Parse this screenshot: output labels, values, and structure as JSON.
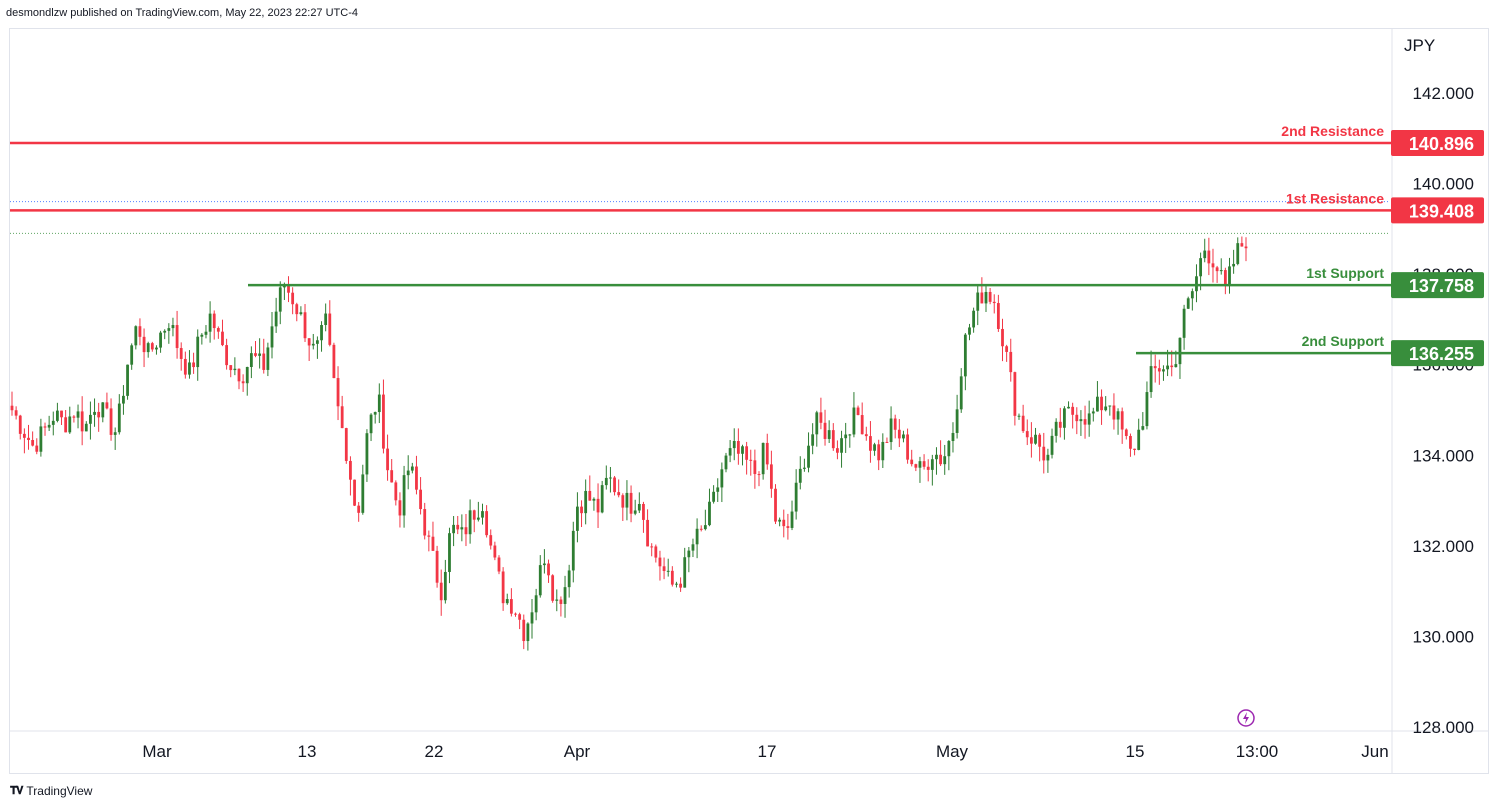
{
  "header": {
    "published_by": "desmondlzw published on TradingView.com, May 22, 2023 22:27 UTC-4"
  },
  "footer": {
    "brand": "TradingView",
    "logo_icon": "tradingview-logo-icon"
  },
  "colors": {
    "resistance": "#f23645",
    "support": "#388e3c",
    "candle_up": "#22ab94",
    "candle_up_dark": "#2e7d32",
    "candle_down": "#f23645",
    "axis_text": "#131722",
    "grid": "#e0e3eb"
  },
  "chart_data": {
    "type": "candlestick",
    "currency": "JPY",
    "y_axis": {
      "range": [
        127.8,
        143.2
      ],
      "ticks": [
        128.0,
        130.0,
        132.0,
        134.0,
        136.0,
        138.0,
        140.0,
        142.0
      ],
      "tick_labels": [
        "128.000",
        "130.000",
        "132.000",
        "134.000",
        "136.000",
        "138.000",
        "140.000",
        "142.000"
      ]
    },
    "x_axis": {
      "tick_labels": [
        "Mar",
        "13",
        "22",
        "Apr",
        "17",
        "May",
        "15",
        "13:00",
        "Jun"
      ]
    },
    "levels": [
      {
        "name": "2nd Resistance",
        "value": 140.896,
        "label": "140.896",
        "kind": "resistance"
      },
      {
        "name": "1st Resistance",
        "value": 139.408,
        "label": "139.408",
        "kind": "resistance"
      },
      {
        "name": "1st Support",
        "value": 137.758,
        "label": "137.758",
        "kind": "support"
      },
      {
        "name": "2nd Support",
        "value": 136.255,
        "label": "136.255",
        "kind": "support"
      }
    ],
    "dotted_lines": [
      139.6,
      138.9
    ],
    "close_path": [
      135.0,
      134.6,
      134.2,
      134.5,
      134.9,
      134.7,
      135.0,
      134.6,
      135.2,
      134.8,
      134.5,
      136.0,
      136.9,
      136.2,
      136.6,
      137.0,
      136.3,
      135.8,
      136.6,
      137.1,
      136.4,
      136.0,
      135.8,
      136.2,
      135.9,
      137.0,
      137.8,
      137.4,
      136.8,
      136.2,
      136.9,
      135.2,
      134.1,
      132.6,
      134.5,
      135.3,
      133.6,
      132.8,
      133.8,
      132.9,
      131.9,
      131.0,
      132.4,
      132.2,
      132.7,
      133.0,
      131.7,
      130.9,
      130.7,
      130.1,
      130.9,
      131.9,
      130.7,
      131.2,
      132.9,
      133.1,
      132.8,
      133.5,
      133.2,
      132.9,
      133.1,
      132.0,
      131.6,
      131.1,
      131.3,
      132.0,
      132.3,
      132.9,
      133.8,
      134.1,
      133.9,
      133.6,
      134.1,
      132.6,
      132.2,
      133.2,
      134.2,
      134.7,
      134.5,
      134.2,
      134.7,
      134.9,
      134.3,
      134.0,
      134.6,
      134.4,
      133.9,
      133.6,
      134.1,
      133.9,
      134.6,
      136.4,
      137.2,
      137.7,
      137.4,
      136.3,
      135.0,
      134.5,
      134.3,
      133.9,
      134.6,
      134.9,
      135.0,
      134.8,
      135.1,
      135.2,
      134.6,
      134.0,
      134.7,
      135.8,
      136.0,
      135.9,
      137.0,
      137.7,
      138.6,
      138.3,
      137.6,
      138.4,
      138.8
    ]
  }
}
